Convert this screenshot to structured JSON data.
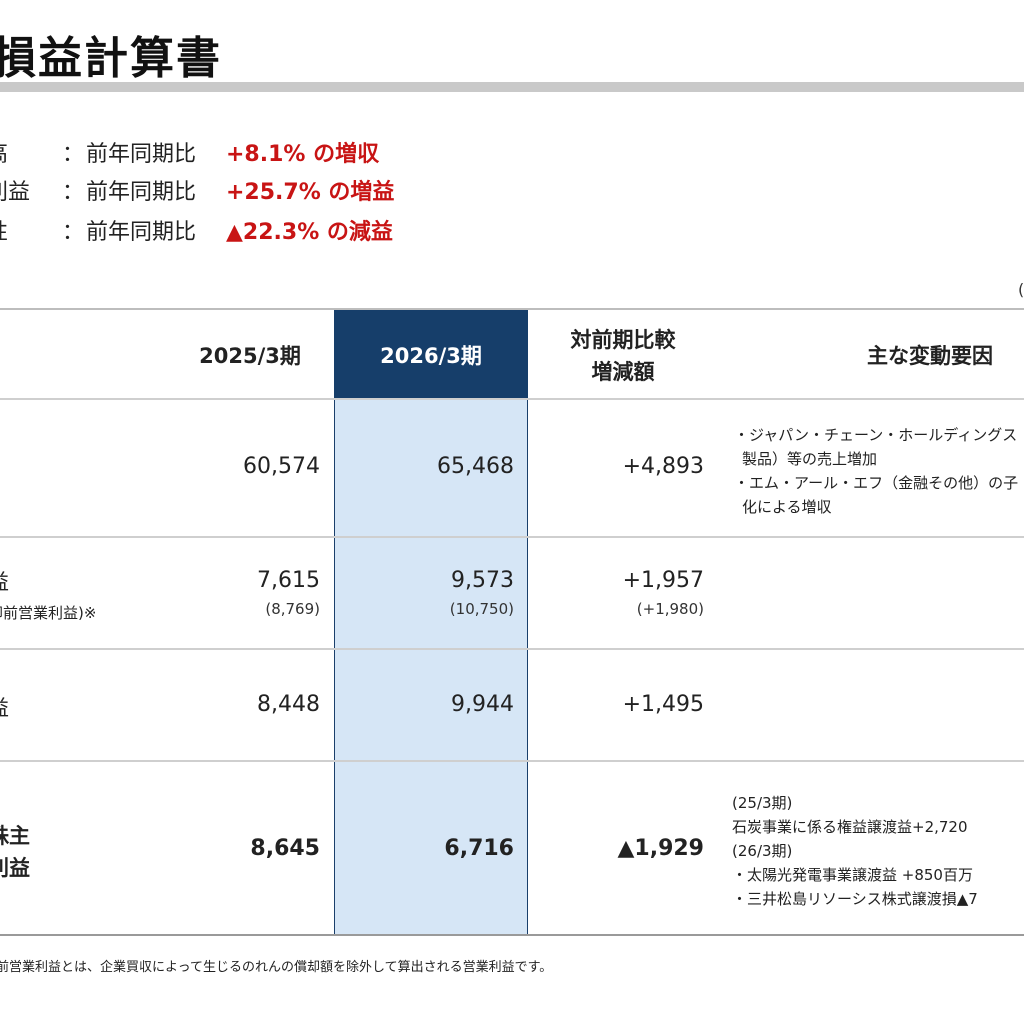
{
  "title": "損益計算書",
  "summary": [
    {
      "label": "高",
      "comparison": "前年同期比",
      "value": "+8.1% の増収"
    },
    {
      "label": "利益",
      "comparison": "前年同期比",
      "value": "+25.7% の増益"
    },
    {
      "label": "性",
      "comparison": "前年同期比",
      "value": "▲22.3% の減益"
    }
  ],
  "summary_colon": "：",
  "unit_fragment": "(",
  "table": {
    "headers": {
      "prev": "2025/3期",
      "curr": "2026/3期",
      "diff_line1": "対前期比較",
      "diff_line2": "増減額",
      "factors": "主な変動要因"
    },
    "rows": [
      {
        "label": "",
        "prev": "60,574",
        "curr": "65,468",
        "diff": "+4,893",
        "notes": [
          "・ジャパン・チェーン・ホールディングス（産",
          "製品）等の売上増加",
          "・エム・アール・エフ（金融その他）の子",
          "化による増収"
        ]
      },
      {
        "label": "益",
        "label_sub": "却前営業利益)※",
        "prev": "7,615",
        "prev_sub": "(8,769)",
        "curr": "9,573",
        "curr_sub": "(10,750)",
        "diff": "+1,957",
        "diff_sub": "(+1,980)"
      },
      {
        "label": "益",
        "prev": "8,448",
        "curr": "9,944",
        "diff": "+1,495"
      },
      {
        "label_line1": "株主",
        "label_line2": "利益",
        "prev": "8,645",
        "curr": "6,716",
        "diff": "▲1,929",
        "notes": [
          "(25/3期)",
          "石炭事業に係る権益譲渡益+2,720",
          "(26/3期)",
          "・太陽光発電事業譲渡益 +850百万",
          "・三井松島リソーシス株式譲渡損▲7"
        ]
      }
    ]
  },
  "footnote": "前営業利益とは、企業買収によって生じるのれんの償却額を除外して算出される営業利益です。"
}
